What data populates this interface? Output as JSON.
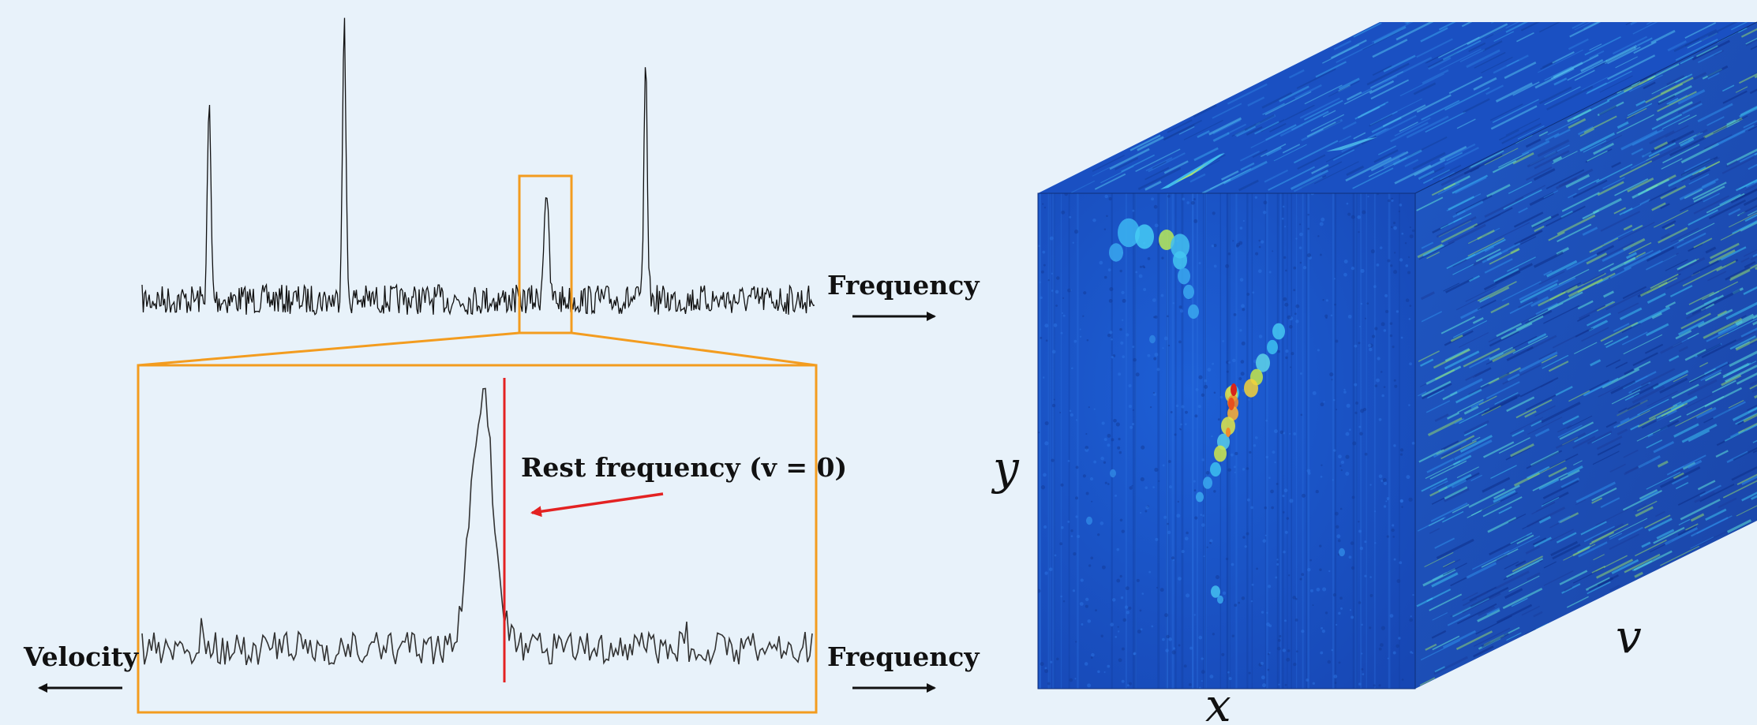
{
  "spectrum": {
    "top_axis_label": "Frequency",
    "zoom_left_label": "Velocity",
    "zoom_right_label": "Frequency",
    "rest_frequency_label": "Rest frequency (v = 0)"
  },
  "cube": {
    "x_label": "x",
    "y_label": "y",
    "v_label": "v"
  },
  "colors": {
    "background": "#e8f2fa",
    "zoom_box": "#f39c1f",
    "rest_line": "#e32222",
    "spectrum_line": "#111111",
    "cube_base": "#1a4fc0"
  }
}
